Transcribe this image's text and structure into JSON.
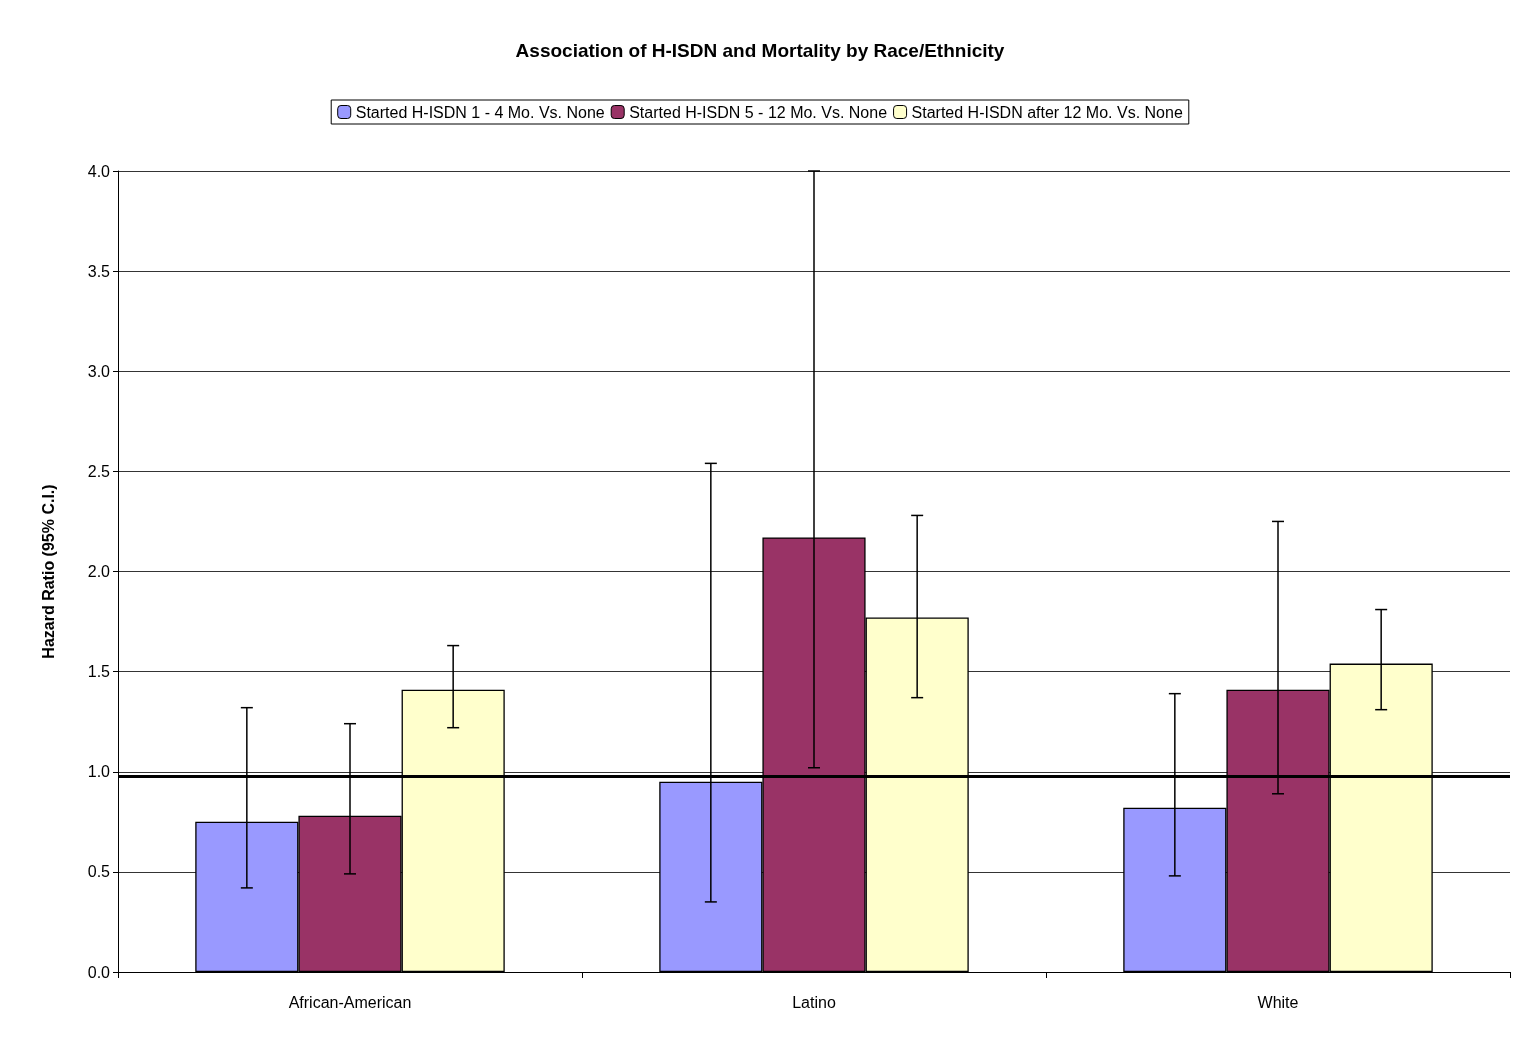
{
  "chart_data": {
    "type": "bar",
    "title": "Association of H-ISDN and Mortality by Race/Ethnicity",
    "ylabel": "Hazard Ratio (95% C.I.)",
    "categories": [
      "African-American",
      "Latino",
      "White"
    ],
    "series": [
      {
        "name": "Started H-ISDN 1 - 4 Mo. Vs. None",
        "color": "#9999ff",
        "values": [
          0.75,
          0.95,
          0.82
        ],
        "errors": [
          [
            0.42,
            1.32
          ],
          [
            0.35,
            2.54
          ],
          [
            0.48,
            1.39
          ]
        ]
      },
      {
        "name": "Started H-ISDN 5 - 12 Mo. Vs. None",
        "color": "#993366",
        "values": [
          0.78,
          2.17,
          1.41
        ],
        "errors": [
          [
            0.49,
            1.24
          ],
          [
            1.02,
            4.0
          ],
          [
            0.89,
            2.25
          ]
        ]
      },
      {
        "name": "Started H-ISDN after 12 Mo. Vs. None",
        "color": "#ffffcc",
        "values": [
          1.41,
          1.77,
          1.54
        ],
        "errors": [
          [
            1.22,
            1.63
          ],
          [
            1.37,
            2.28
          ],
          [
            1.31,
            1.81
          ]
        ]
      }
    ],
    "ylim": [
      0,
      4
    ],
    "yticks": [
      {
        "value": 0,
        "label": "0.0"
      },
      0.5,
      {
        "value": 1,
        "label": "1.0"
      },
      1.5,
      {
        "value": 2,
        "label": "2.0"
      },
      2.5,
      {
        "value": 3,
        "label": "3.0"
      },
      3.5,
      {
        "value": 4,
        "label": "4.0"
      }
    ],
    "ref_lines": [
      {
        "axis": "y",
        "value": 0.98,
        "color": "#000000"
      }
    ],
    "grid": "y",
    "legend": "top"
  }
}
